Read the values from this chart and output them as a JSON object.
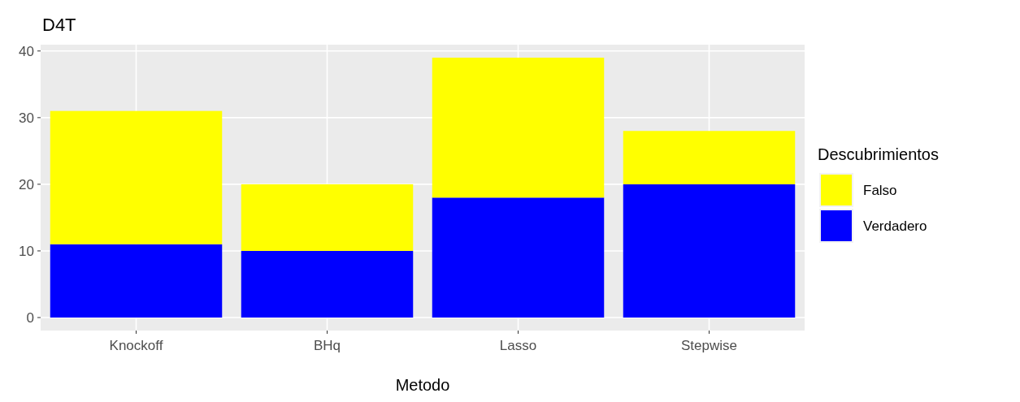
{
  "chart_data": {
    "type": "bar",
    "title": "D4T",
    "xlabel": "Metodo",
    "legend_title": "Descubrimientos",
    "categories": [
      "Knockoff",
      "BHq",
      "Lasso",
      "Stepwise"
    ],
    "stacked": true,
    "series": [
      {
        "name": "Verdadero",
        "color": "#0000ff",
        "values": [
          11,
          10,
          18,
          20
        ]
      },
      {
        "name": "Falso",
        "color": "#ffff00",
        "values": [
          20,
          10,
          21,
          8
        ]
      }
    ],
    "ylim": [
      -1.95,
      40.95
    ],
    "yticks": [
      0,
      10,
      20,
      30,
      40
    ],
    "grid": true,
    "legend": "right"
  }
}
